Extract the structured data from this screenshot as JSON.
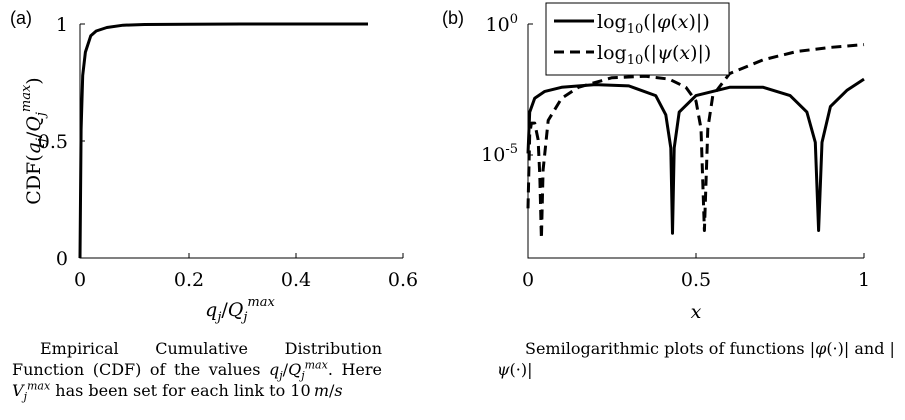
{
  "panels": {
    "a": {
      "tag": "(a)",
      "ylabel": "CDF(q_j/Q_j^max)",
      "xlabel": "q_j/Q_j^max",
      "xticks": [
        "0",
        "0.2",
        "0.4",
        "0.6"
      ],
      "yticks": [
        "0",
        "0.5",
        "1"
      ]
    },
    "b": {
      "tag": "(b)",
      "xlabel": "x",
      "xticks": [
        "0",
        "0.5",
        "1"
      ],
      "yticks": [
        "10^0",
        "10^-5"
      ],
      "legend": [
        "log10(|φ(x)|)",
        "log10(|ψ(x)|)"
      ]
    }
  },
  "captions": {
    "a": "Empirical Cumulative Distribution Function (CDF) of the values q_j/Q_j^max. Here V_j^max has been set for each link to 10 m/s",
    "b": "Semilogarithmic plots of functions |φ(·)| and |ψ(·)|"
  },
  "chart_data": [
    {
      "type": "line",
      "series": [
        {
          "x": [
            0,
            0.002,
            0.005,
            0.01,
            0.02,
            0.03,
            0.05,
            0.08,
            0.12,
            0.2,
            0.3,
            0.4,
            0.535
          ],
          "y": [
            0,
            0.55,
            0.78,
            0.88,
            0.95,
            0.97,
            0.985,
            0.995,
            0.998,
            0.999,
            1,
            1,
            1
          ]
        }
      ],
      "xlim": [
        0,
        0.6
      ],
      "ylim": [
        0,
        1
      ]
    },
    {
      "type": "line",
      "ylog": true,
      "xlim": [
        0,
        1
      ],
      "ylim": [
        -8.5,
        0
      ],
      "series": [
        {
          "name": "log10(|φ(x)|)",
          "style": "solid",
          "x": [
            0,
            0.005,
            0.02,
            0.05,
            0.1,
            0.2,
            0.3,
            0.38,
            0.41,
            0.425,
            0.43,
            0.435,
            0.45,
            0.5,
            0.6,
            0.7,
            0.78,
            0.83,
            0.855,
            0.865,
            0.875,
            0.9,
            0.95,
            1
          ],
          "y": [
            -4.7,
            -3.2,
            -2.7,
            -2.45,
            -2.3,
            -2.2,
            -2.25,
            -2.6,
            -3.3,
            -4.5,
            -7.6,
            -4.5,
            -3.2,
            -2.6,
            -2.3,
            -2.3,
            -2.6,
            -3.2,
            -4.3,
            -7.5,
            -4.3,
            -3.0,
            -2.4,
            -2.0
          ]
        },
        {
          "name": "log10(|ψ(x)|)",
          "style": "dashed",
          "x": [
            0,
            0.005,
            0.01,
            0.02,
            0.03,
            0.035,
            0.04,
            0.045,
            0.06,
            0.1,
            0.15,
            0.25,
            0.35,
            0.42,
            0.47,
            0.5,
            0.515,
            0.525,
            0.535,
            0.55,
            0.6,
            0.7,
            0.8,
            0.9,
            1
          ],
          "y": [
            -6.7,
            -4.0,
            -3.6,
            -3.6,
            -4.2,
            -5.5,
            -7.8,
            -5.3,
            -3.5,
            -2.7,
            -2.3,
            -1.95,
            -1.9,
            -2.0,
            -2.3,
            -2.8,
            -3.8,
            -7.5,
            -3.8,
            -2.6,
            -1.8,
            -1.3,
            -1.0,
            -0.85,
            -0.75
          ]
        }
      ]
    }
  ]
}
